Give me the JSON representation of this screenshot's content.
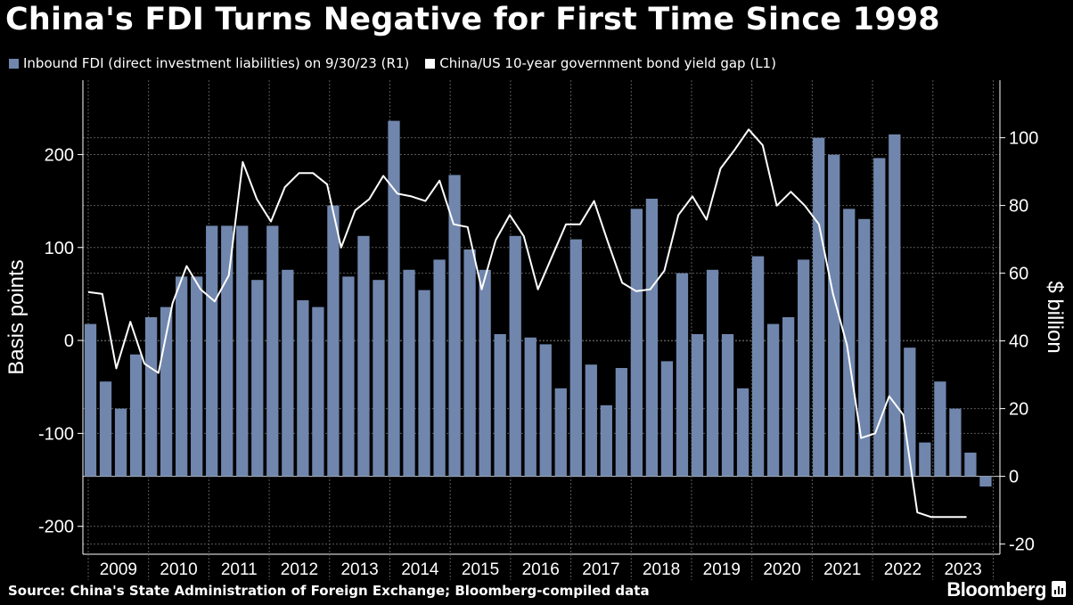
{
  "title": "China's FDI Turns Negative for First Time Since 1998",
  "source": "Source: China's State Administration of Foreign Exchange; Bloomberg-compiled data",
  "brand": "Bloomberg",
  "colors": {
    "bar": "#7086ad",
    "line": "#ffffff",
    "background": "#000000",
    "grid": "#5a5a5a"
  },
  "chart_data": {
    "type": "bar",
    "ylabel_left": "Basis points",
    "ylabel_right": "$ billion",
    "ylim_left": [
      -230,
      280
    ],
    "ylim_right": [
      -23,
      117
    ],
    "yticks_left": [
      -200,
      -100,
      0,
      100,
      200
    ],
    "yticks_right": [
      -20,
      0,
      20,
      40,
      60,
      80,
      100
    ],
    "year_labels": [
      "2009",
      "2010",
      "2011",
      "2012",
      "2013",
      "2014",
      "2015",
      "2016",
      "2017",
      "2018",
      "2019",
      "2020",
      "2021",
      "2022",
      "2023"
    ],
    "grid": true,
    "legend_position": "top",
    "series": [
      {
        "name": "Inbound FDI (direct investment liabilities) on 9/30/23 (R1)",
        "type": "bar",
        "axis": "right",
        "values": [
          45,
          28,
          20,
          36,
          47,
          50,
          59,
          59,
          74,
          74,
          74,
          58,
          74,
          61,
          52,
          50,
          80,
          59,
          71,
          58,
          105,
          61,
          55,
          64,
          89,
          67,
          61,
          42,
          71,
          41,
          39,
          26,
          70,
          33,
          21,
          32,
          79,
          82,
          34,
          60,
          42,
          61,
          42,
          26,
          65,
          45,
          47,
          64,
          100,
          95,
          79,
          76,
          94,
          101,
          38,
          10,
          28,
          20,
          7,
          -3
        ],
        "x_labels": [
          "Q1 2009",
          "Q2 2009",
          "Q3 2009",
          "Q4 2009",
          "Q1 2010",
          "Q2 2010",
          "Q3 2010",
          "Q4 2010",
          "Q1 2011",
          "Q2 2011",
          "Q3 2011",
          "Q4 2011",
          "Q1 2012",
          "Q2 2012",
          "Q3 2012",
          "Q4 2012",
          "Q1 2013",
          "Q2 2013",
          "Q3 2013",
          "Q4 2013",
          "Q1 2014",
          "Q2 2014",
          "Q3 2014",
          "Q4 2014",
          "Q1 2015",
          "Q2 2015",
          "Q3 2015",
          "Q4 2015",
          "Q1 2016",
          "Q2 2016",
          "Q3 2016",
          "Q4 2016",
          "Q1 2017",
          "Q2 2017",
          "Q3 2017",
          "Q4 2017",
          "Q1 2018",
          "Q2 2018",
          "Q3 2018",
          "Q4 2018",
          "Q1 2019",
          "Q2 2019",
          "Q3 2019",
          "Q4 2019",
          "Q1 2020",
          "Q2 2020",
          "Q3 2020",
          "Q4 2020",
          "Q1 2021",
          "Q2 2021",
          "Q3 2021",
          "Q4 2021",
          "Q1 2022",
          "Q2 2022",
          "Q3 2022",
          "Q4 2022",
          "Q1 2023",
          "Q2 2023",
          "Q3 2023",
          "Q4 2023"
        ]
      },
      {
        "name": "China/US 10-year government bond yield gap (L1)",
        "type": "line",
        "axis": "left",
        "x_frac": [
          0,
          0.016,
          0.032,
          0.048,
          0.064,
          0.08,
          0.096,
          0.112,
          0.128,
          0.144,
          0.16,
          0.176,
          0.192,
          0.208,
          0.224,
          0.24,
          0.256,
          0.272,
          0.288,
          0.304,
          0.32,
          0.336,
          0.352,
          0.368,
          0.384,
          0.4,
          0.416,
          0.432,
          0.448,
          0.464,
          0.48,
          0.496,
          0.512,
          0.528,
          0.544,
          0.56,
          0.576,
          0.592,
          0.608,
          0.624,
          0.64,
          0.656,
          0.672,
          0.688,
          0.704,
          0.72,
          0.736,
          0.752,
          0.768,
          0.784,
          0.8,
          0.816,
          0.832,
          0.848,
          0.864,
          0.88,
          0.896,
          0.912,
          0.928,
          0.944,
          0.96,
          0.976,
          0.992,
          1.0
        ],
        "values": [
          52,
          50,
          -30,
          20,
          -25,
          -35,
          40,
          80,
          55,
          42,
          70,
          192,
          152,
          128,
          165,
          180,
          180,
          168,
          100,
          140,
          152,
          177,
          158,
          155,
          150,
          172,
          125,
          122,
          55,
          108,
          135,
          112,
          55,
          90,
          125,
          125,
          150,
          105,
          62,
          53,
          55,
          75,
          135,
          155,
          130,
          185,
          205,
          227,
          210,
          145,
          160,
          145,
          125,
          50,
          -5,
          -105,
          -100,
          -60,
          -80,
          -185,
          -190,
          -190,
          -190,
          -190
        ]
      }
    ]
  }
}
